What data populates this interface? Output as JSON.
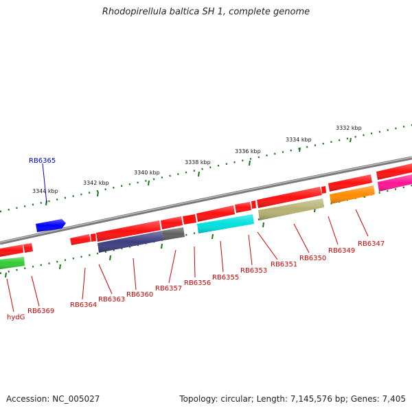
{
  "title": "Rhodopirellula baltica SH 1, complete genome",
  "footer": {
    "accession": "Accession: NC_005027",
    "summary": "Topology: circular; Length: 7,145,576 bp; Genes: 7,405"
  },
  "colors": {
    "backbone": "#808080",
    "ticks": "#117711",
    "forward_gene": "#ff0000",
    "label_red": "#cc0000",
    "label_blue": "#0000cc"
  },
  "scale_labels": [
    "3332 kbp",
    "3334 kbp",
    "3336 kbp",
    "3338 kbp",
    "3340 kbp",
    "3342 kbp",
    "3344 kbp"
  ],
  "genes": [
    {
      "name": "RB6365",
      "color": "#0000ff",
      "label_color": "blue"
    },
    {
      "name": "hydG",
      "color": "#33cc33"
    },
    {
      "name": "RB6369",
      "color": "#ff0000"
    },
    {
      "name": "RB6364",
      "color": "#ff0000"
    },
    {
      "name": "RB6363",
      "color": "#ff0000"
    },
    {
      "name": "RB6360",
      "color": "#3d3d80"
    },
    {
      "name": "RB6357",
      "color": "#606060"
    },
    {
      "name": "RB6356",
      "color": "#ff0000"
    },
    {
      "name": "RB6355",
      "color": "#00e0e0"
    },
    {
      "name": "RB6353",
      "color": "#ff0000"
    },
    {
      "name": "RB6351",
      "color": "#ff0000"
    },
    {
      "name": "RB6350",
      "color": "#b5b070"
    },
    {
      "name": "RB6349",
      "color": "#ff8c00"
    },
    {
      "name": "RB6347",
      "color": "#ff1493"
    }
  ]
}
